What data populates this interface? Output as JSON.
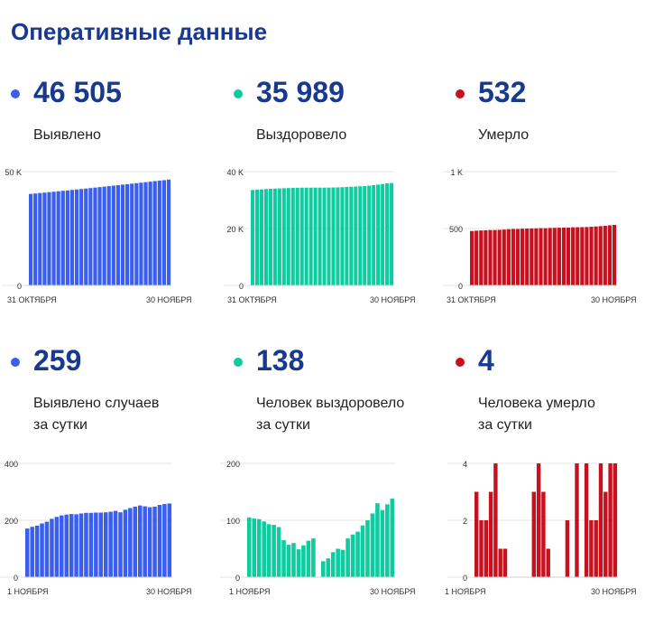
{
  "page_title": "Оперативные данные",
  "colors": {
    "blue": "#3a5ef0",
    "green": "#0ecba0",
    "red": "#c8101e",
    "title": "#17398f"
  },
  "panels": [
    {
      "id": "detected-total",
      "value": "46 505",
      "label_lines": [
        "Выявлено"
      ],
      "color": "#3a5ef0"
    },
    {
      "id": "recovered-total",
      "value": "35 989",
      "label_lines": [
        "Выздоровело"
      ],
      "color": "#0ecba0"
    },
    {
      "id": "died-total",
      "value": "532",
      "label_lines": [
        "Умерло"
      ],
      "color": "#c8101e"
    },
    {
      "id": "detected-daily",
      "value": "259",
      "label_lines": [
        "Выявлено случаев",
        "за сутки"
      ],
      "color": "#3a5ef0"
    },
    {
      "id": "recovered-daily",
      "value": "138",
      "label_lines": [
        "Человек выздоровело",
        "за сутки"
      ],
      "color": "#0ecba0"
    },
    {
      "id": "died-daily",
      "value": "4",
      "label_lines": [
        "Человека умерло",
        "за сутки"
      ],
      "color": "#c8101e"
    }
  ],
  "chart_data": [
    {
      "type": "bar",
      "series_name": "Выявлено",
      "color": "#3a5ef0",
      "ylim": [
        0,
        50000
      ],
      "yticks": [
        "0",
        "50 K"
      ],
      "ytick_values": [
        0,
        50000
      ],
      "xlabels": [
        "31 ОКТЯБРЯ",
        "30 НОЯБРЯ"
      ],
      "values": [
        40207,
        40396,
        40591,
        40788,
        40983,
        41177,
        41366,
        41558,
        41754,
        41955,
        42157,
        42361,
        42568,
        42776,
        42986,
        43199,
        43410,
        43624,
        43843,
        44065,
        44283,
        44495,
        44715,
        44934,
        45148,
        45362,
        45593,
        45834,
        46073,
        46246,
        46505
      ]
    },
    {
      "type": "bar",
      "series_name": "Выздоровело",
      "color": "#0ecba0",
      "ylim": [
        0,
        40000
      ],
      "yticks": [
        "0",
        "20 K",
        "40 K"
      ],
      "ytick_values": [
        0,
        20000,
        40000
      ],
      "xlabels": [
        "31 ОКТЯБРЯ",
        "30 НОЯБРЯ"
      ],
      "values": [
        33550,
        33655,
        33758,
        33860,
        33951,
        34035,
        34115,
        34180,
        34224,
        34273,
        34330,
        34360,
        34362,
        34362,
        34362,
        34362,
        34362,
        34391,
        34424,
        34474,
        34528,
        34598,
        34673,
        34753,
        34843,
        34938,
        35065,
        35229,
        35433,
        35641,
        35851,
        35989
      ]
    },
    {
      "type": "bar",
      "series_name": "Умерло",
      "color": "#c8101e",
      "ylim": [
        0,
        1000
      ],
      "yticks": [
        "0",
        "500",
        "1 K"
      ],
      "ytick_values": [
        0,
        500,
        1000
      ],
      "xlabels": [
        "31 ОКТЯБРЯ",
        "30 НОЯБРЯ"
      ],
      "values": [
        478,
        481,
        483,
        485,
        487,
        487,
        489,
        491,
        494,
        496,
        496,
        499,
        500,
        501,
        502,
        503,
        503,
        505,
        506,
        507,
        508,
        508,
        511,
        511,
        512,
        513,
        516,
        518,
        521,
        524,
        528,
        532
      ]
    },
    {
      "type": "bar",
      "series_name": "Выявлено случаев за сутки",
      "color": "#3a5ef0",
      "ylim": [
        0,
        400
      ],
      "yticks": [
        "0",
        "200",
        "400"
      ],
      "ytick_values": [
        0,
        200,
        400
      ],
      "xlabels": [
        "1 НОЯБРЯ",
        "30 НОЯБРЯ"
      ],
      "values": [
        171,
        177,
        181,
        189,
        195,
        205,
        212,
        217,
        220,
        222,
        221,
        224,
        226,
        226,
        227,
        227,
        228,
        230,
        233,
        228,
        237,
        243,
        248,
        252,
        249,
        246,
        248,
        254,
        257,
        259
      ]
    },
    {
      "type": "bar",
      "series_name": "Человек выздоровело за сутки",
      "color": "#0ecba0",
      "ylim": [
        0,
        200
      ],
      "yticks": [
        "0",
        "100",
        "200"
      ],
      "ytick_values": [
        0,
        100,
        200
      ],
      "xlabels": [
        "1 НОЯБРЯ",
        "30 НОЯБРЯ"
      ],
      "values": [
        105,
        103,
        102,
        98,
        93,
        92,
        88,
        65,
        57,
        60,
        49,
        56,
        64,
        68,
        0,
        28,
        33,
        44,
        50,
        48,
        68,
        75,
        80,
        91,
        100,
        112,
        130,
        118,
        128,
        138
      ]
    },
    {
      "type": "bar",
      "series_name": "Человека умерло за сутки",
      "color": "#c8101e",
      "ylim": [
        0,
        4
      ],
      "yticks": [
        "0",
        "2",
        "4"
      ],
      "ytick_values": [
        0,
        2,
        4
      ],
      "xlabels": [
        "1 НОЯБРЯ",
        "30 НОЯБРЯ"
      ],
      "values": [
        3,
        2,
        2,
        3,
        4,
        1,
        1,
        0,
        0,
        0,
        0,
        0,
        3,
        4,
        3,
        1,
        0,
        0,
        0,
        2,
        0,
        4,
        0,
        4,
        2,
        2,
        4,
        3,
        4,
        4
      ]
    }
  ]
}
